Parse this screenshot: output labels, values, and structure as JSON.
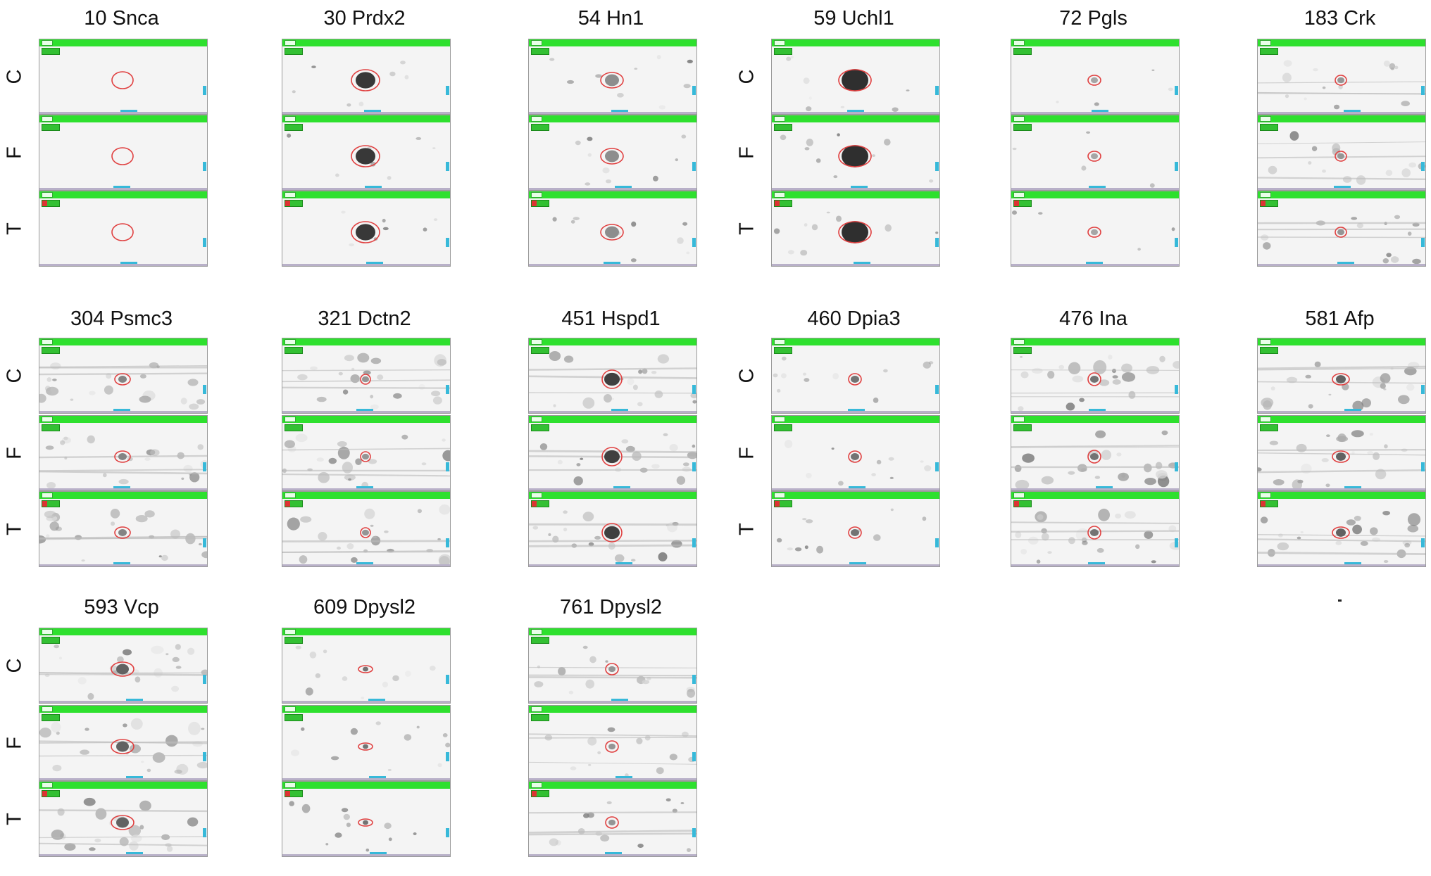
{
  "rows": [
    "C",
    "F",
    "T"
  ],
  "panels": [
    {
      "title": "10 Snca"
    },
    {
      "title": "30 Prdx2"
    },
    {
      "title": "54 Hn1"
    },
    {
      "title": "59 Uchl1"
    },
    {
      "title": "72 Pgls"
    },
    {
      "title": "183 Crk"
    },
    {
      "title": "304 Psmc3"
    },
    {
      "title": "321 Dctn2"
    },
    {
      "title": "451 Hspd1"
    },
    {
      "title": "460 Dpia3"
    },
    {
      "title": "476 Ina"
    },
    {
      "title": "581 Afp"
    },
    {
      "title": "593 Vcp"
    },
    {
      "title": "609 Dpysl2"
    },
    {
      "title": "761 Dpysl2"
    }
  ],
  "colors": {
    "header_bar": "#2ee02e",
    "outline": "#e04040",
    "marker": "#37b9d9"
  }
}
